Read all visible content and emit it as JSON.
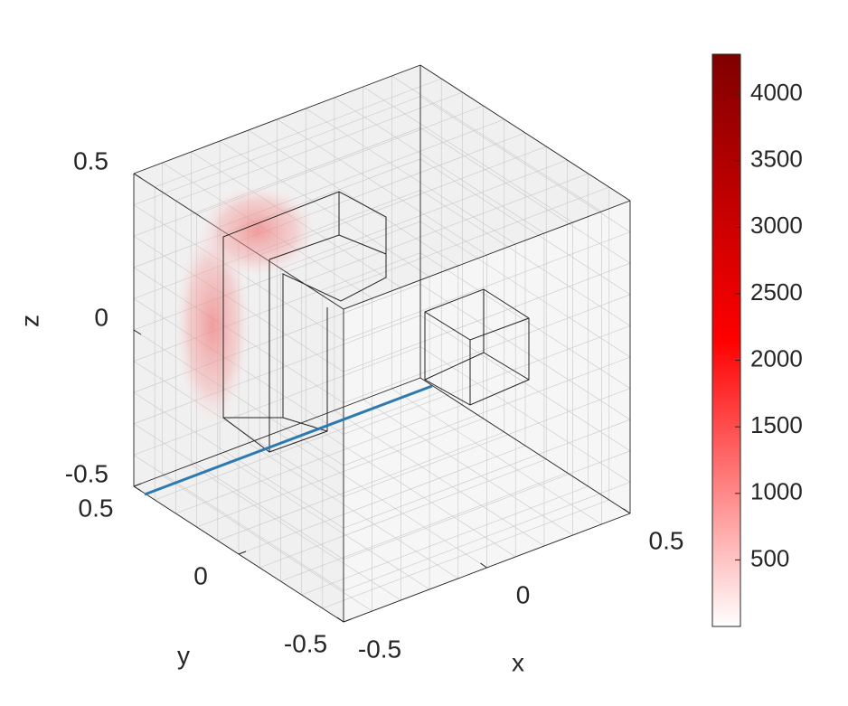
{
  "chart_data": {
    "type": "volume3d",
    "xlabel": "x",
    "ylabel": "y",
    "zlabel": "z",
    "xlim": [
      -0.5,
      0.5
    ],
    "xticks": [
      -0.5,
      0,
      0.5
    ],
    "ylim": [
      -0.5,
      0.5
    ],
    "yticks": [
      -0.5,
      0,
      0.5
    ],
    "zlim": [
      -0.5,
      0.5
    ],
    "zticks": [
      -0.5,
      0,
      0.5
    ],
    "colorbar": {
      "clim": [
        0,
        4300
      ],
      "ticks": [
        500,
        1000,
        1500,
        2000,
        2500,
        3000,
        3500,
        4000
      ],
      "colormap": [
        "#ffffff",
        "#ff0000",
        "#800000"
      ]
    }
  }
}
